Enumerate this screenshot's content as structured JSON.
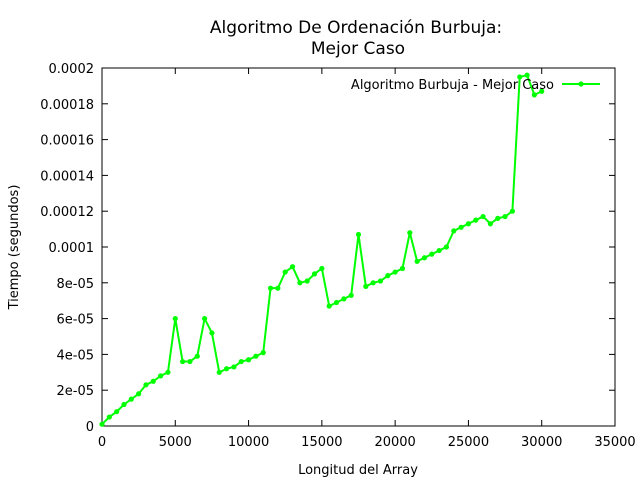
{
  "chart_data": {
    "type": "line",
    "title_line1": "Algoritmo De Ordenación Burbuja:",
    "title_line2": "Mejor Caso",
    "xlabel": "Longitud del Array",
    "ylabel": "Tiempo (segundos)",
    "xlim": [
      0,
      35000
    ],
    "ylim": [
      0,
      0.0002
    ],
    "x_ticks": [
      0,
      5000,
      10000,
      15000,
      20000,
      25000,
      30000,
      35000
    ],
    "x_tick_labels": [
      "0",
      "5000",
      "10000",
      "15000",
      "20000",
      "25000",
      "30000",
      "35000"
    ],
    "y_ticks": [
      0,
      2e-05,
      4e-05,
      6e-05,
      8e-05,
      0.0001,
      0.00012,
      0.00014,
      0.00016,
      0.00018,
      0.0002
    ],
    "y_tick_labels": [
      "0",
      "2e-05",
      "4e-05",
      "6e-05",
      "8e-05",
      "0.0001",
      "0.00012",
      "0.00014",
      "0.00016",
      "0.00018",
      "0.0002"
    ],
    "legend_position": "top-right",
    "grid": false,
    "series": [
      {
        "name": "Algoritmo Burbuja - Mejor Caso",
        "color": "#00ff00",
        "x": [
          0,
          500,
          1000,
          1500,
          2000,
          2500,
          3000,
          3500,
          4000,
          4500,
          5000,
          5500,
          6000,
          6500,
          7000,
          7500,
          8000,
          8500,
          9000,
          9500,
          10000,
          10500,
          11000,
          11500,
          12000,
          12500,
          13000,
          13500,
          14000,
          14500,
          15000,
          15500,
          16000,
          16500,
          17000,
          17500,
          18000,
          18500,
          19000,
          19500,
          20000,
          20500,
          21000,
          21500,
          22000,
          22500,
          23000,
          23500,
          24000,
          24500,
          25000,
          25500,
          26000,
          26500,
          27000,
          27500,
          28000,
          28500,
          29000,
          29500,
          30000
        ],
        "y": [
          1e-06,
          5e-06,
          8e-06,
          1.2e-05,
          1.5e-05,
          1.8e-05,
          2.3e-05,
          2.5e-05,
          2.8e-05,
          3e-05,
          6e-05,
          3.6e-05,
          3.6e-05,
          3.9e-05,
          6e-05,
          5.2e-05,
          3e-05,
          3.2e-05,
          3.3e-05,
          3.6e-05,
          3.7e-05,
          3.9e-05,
          4.1e-05,
          7.7e-05,
          7.7e-05,
          8.6e-05,
          8.9e-05,
          8e-05,
          8.1e-05,
          8.5e-05,
          8.8e-05,
          6.7e-05,
          6.9e-05,
          7.1e-05,
          7.3e-05,
          0.000107,
          7.8e-05,
          8e-05,
          8.1e-05,
          8.4e-05,
          8.6e-05,
          8.8e-05,
          0.000108,
          9.2e-05,
          9.4e-05,
          9.6e-05,
          9.8e-05,
          0.0001,
          0.000109,
          0.000111,
          0.000113,
          0.000115,
          0.000117,
          0.000113,
          0.000116,
          0.000117,
          0.00012,
          0.000195,
          0.000196,
          0.000185,
          0.000187
        ]
      }
    ]
  }
}
